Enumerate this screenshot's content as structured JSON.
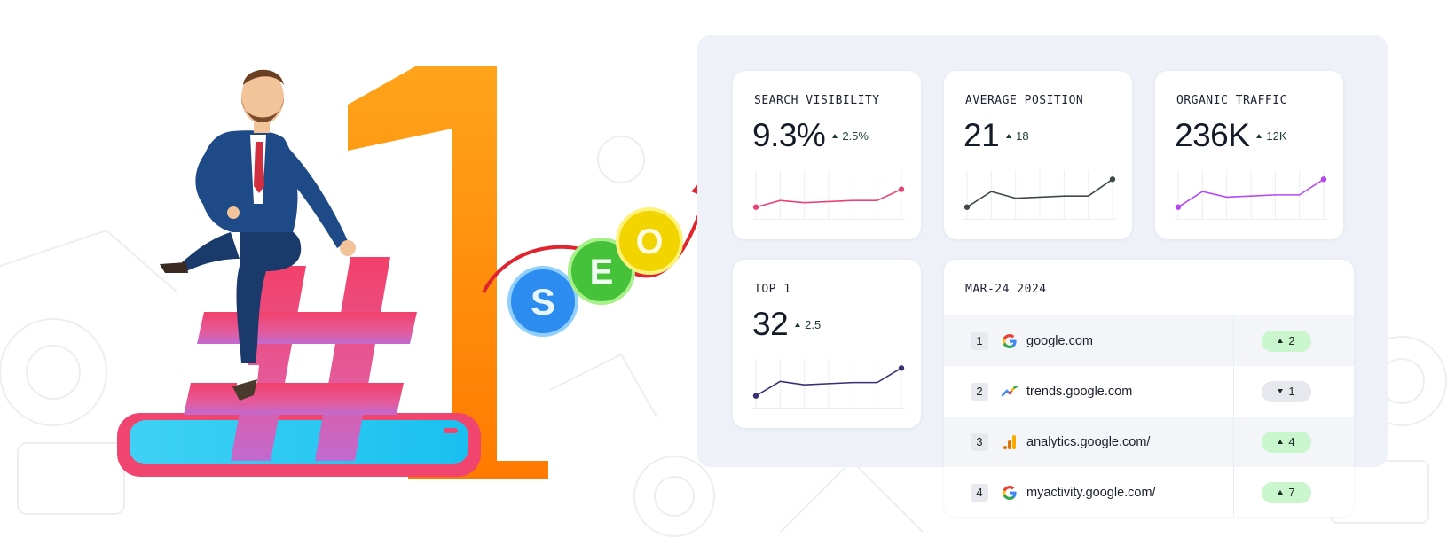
{
  "illustration": {
    "big_number": "1",
    "hash_symbol": "#",
    "seo_letters": [
      "S",
      "E",
      "O"
    ]
  },
  "metrics": [
    {
      "label": "SEARCH VISIBILITY",
      "value": "9.3%",
      "delta": "2.5%",
      "trend": "up",
      "color": "#e6457a",
      "series": [
        20,
        26,
        24,
        25,
        26,
        26,
        36
      ]
    },
    {
      "label": "AVERAGE POSITION",
      "value": "21",
      "delta": "18",
      "trend": "up",
      "color": "#3f4a47",
      "series": [
        20,
        34,
        28,
        29,
        30,
        30,
        45
      ]
    },
    {
      "label": "ORGANIC TRAFFIC",
      "value": "236K",
      "delta": "12K",
      "trend": "up",
      "color": "#b548f0",
      "series": [
        20,
        34,
        29,
        30,
        31,
        31,
        45
      ]
    },
    {
      "label": "TOP 1",
      "value": "32",
      "delta": "2.5",
      "trend": "up",
      "color": "#3b2f73",
      "series": [
        20,
        33,
        30,
        31,
        32,
        32,
        45
      ]
    }
  ],
  "rankings": {
    "title": "MAR-24 2024",
    "rows": [
      {
        "rank": "1",
        "icon": "google-g-icon",
        "domain": "google.com",
        "change": "2",
        "direction": "up"
      },
      {
        "rank": "2",
        "icon": "trends-icon",
        "domain": "trends.google.com",
        "change": "1",
        "direction": "down"
      },
      {
        "rank": "3",
        "icon": "analytics-icon",
        "domain": "analytics.google.com/",
        "change": "4",
        "direction": "up"
      },
      {
        "rank": "4",
        "icon": "google-g-icon",
        "domain": "myactivity.google.com/",
        "change": "7",
        "direction": "up"
      }
    ]
  },
  "colors": {
    "panel_bg": "#eef1f8",
    "badge_up": "#c9f6cd",
    "badge_down": "#e6e8ed",
    "orange": "#ff8a00",
    "pink": "#f0456f"
  }
}
